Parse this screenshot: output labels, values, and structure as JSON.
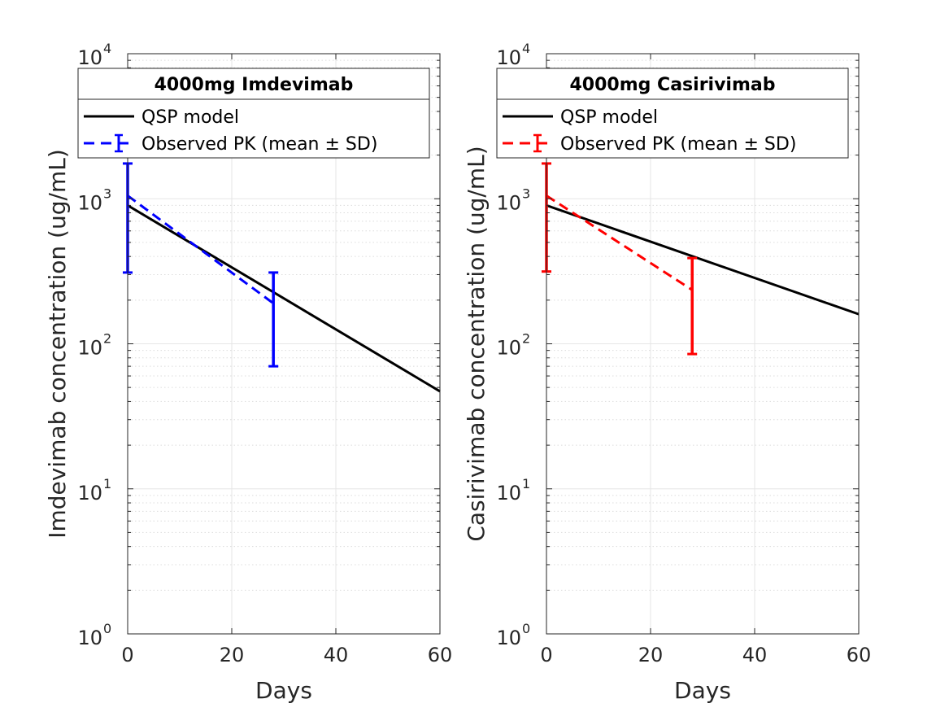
{
  "chart_data": [
    {
      "type": "line",
      "panel": "left",
      "title": "4000mg Imdevimab",
      "xlabel": "Days",
      "ylabel": "Imdevimab concentration (ug/mL)",
      "xlim": [
        0,
        60
      ],
      "ylim": [
        1,
        10000
      ],
      "yscale": "log",
      "grid": true,
      "legend_position": "top",
      "xticks": [
        0,
        20,
        40,
        60
      ],
      "yticks": [
        {
          "base": "10",
          "exp": "0"
        },
        {
          "base": "10",
          "exp": "1"
        },
        {
          "base": "10",
          "exp": "2"
        },
        {
          "base": "10",
          "exp": "3"
        },
        {
          "base": "10",
          "exp": "4"
        }
      ],
      "series": [
        {
          "name": "QSP model",
          "style": "solid",
          "color": "#000000",
          "x": [
            0,
            60
          ],
          "y": [
            900,
            47
          ]
        },
        {
          "name": "Observed PK (mean ± SD)",
          "style": "dashed",
          "color": "#0000ff",
          "x": [
            0,
            28
          ],
          "y": [
            1050,
            190
          ],
          "error_low": [
            310,
            70
          ],
          "error_high": [
            1750,
            310
          ]
        }
      ]
    },
    {
      "type": "line",
      "panel": "right",
      "title": "4000mg Casirivimab",
      "xlabel": "Days",
      "ylabel": "Casirivimab concentration (ug/mL)",
      "xlim": [
        0,
        60
      ],
      "ylim": [
        1,
        10000
      ],
      "yscale": "log",
      "grid": true,
      "legend_position": "top",
      "xticks": [
        0,
        20,
        40,
        60
      ],
      "yticks": [
        {
          "base": "10",
          "exp": "0"
        },
        {
          "base": "10",
          "exp": "1"
        },
        {
          "base": "10",
          "exp": "2"
        },
        {
          "base": "10",
          "exp": "3"
        },
        {
          "base": "10",
          "exp": "4"
        }
      ],
      "series": [
        {
          "name": "QSP model",
          "style": "solid",
          "color": "#000000",
          "x": [
            0,
            60
          ],
          "y": [
            900,
            160
          ]
        },
        {
          "name": "Observed PK (mean ± SD)",
          "style": "dashed",
          "color": "#ff0000",
          "x": [
            0,
            28
          ],
          "y": [
            1050,
            235
          ],
          "error_low": [
            315,
            85
          ],
          "error_high": [
            1750,
            390
          ]
        }
      ]
    }
  ]
}
